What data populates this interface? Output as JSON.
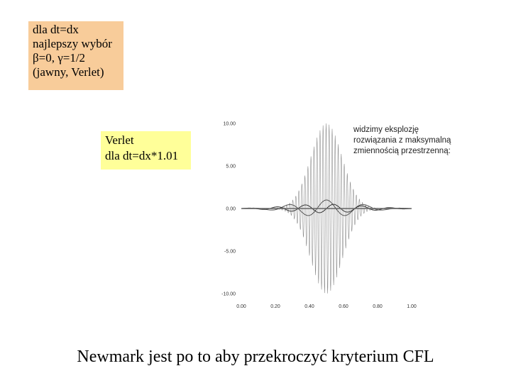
{
  "box_top": {
    "lines": [
      "dla dt=dx",
      "najlepszy wybór",
      "β=0, γ=1/2",
      "(jawny, Verlet)"
    ],
    "bg_color": "#f8cc9a"
  },
  "box_mid": {
    "lines": [
      "Verlet",
      "dla dt=dx*1.01"
    ],
    "bg_color": "#ffff99"
  },
  "annotation": {
    "lines": [
      "widzimy eksplozję",
      "rozwiązania z maksymalną",
      "zmiennością przestrzenną:"
    ]
  },
  "caption": "Newmark jest po to aby przekroczyć kryterium CFL",
  "chart_data": {
    "type": "line",
    "title": "",
    "xlabel": "",
    "ylabel": "",
    "xlim": [
      0.0,
      1.0
    ],
    "ylim": [
      -10.0,
      10.0
    ],
    "x_ticks": [
      "0.00",
      "0.20",
      "0.40",
      "0.60",
      "0.80",
      "1.00"
    ],
    "y_ticks": [
      "10.00",
      "5.00",
      "0.00",
      "-5.00",
      "-10.00"
    ],
    "grid": false,
    "series": [
      {
        "description_values": "oscillating wave packet, envelope max ~10 at x~0.5",
        "envelope_peak": 10.0,
        "envelope_center": 0.5,
        "envelope_width": 0.13,
        "color": "#888888"
      },
      {
        "envelope_peak": 1.0,
        "envelope_center": 0.5,
        "envelope_width": 0.25,
        "color": "#555555"
      },
      {
        "envelope_peak": 0.5,
        "envelope_center": 0.5,
        "envelope_width": 0.3,
        "color": "#333333"
      }
    ]
  }
}
